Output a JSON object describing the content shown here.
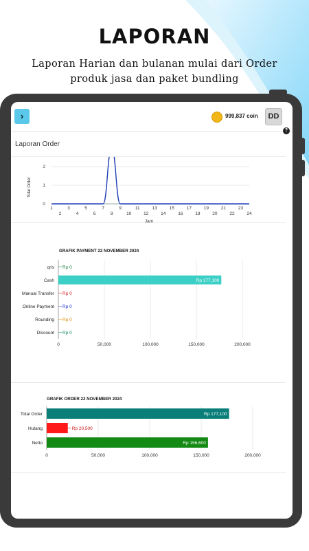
{
  "promo": {
    "headline": "LAPORAN",
    "subline_1": "Laporan Harian dan bulanan mulai dari Order",
    "subline_2": "produk jasa dan paket bundling"
  },
  "header": {
    "menu_icon": "chevron-right-icon",
    "coin_text": "999,837 coin",
    "avatar_initials": "DD",
    "help_icon": "question-circle-icon"
  },
  "page": {
    "title": "Laporan Order"
  },
  "colors": {
    "line": "#1f3fb5",
    "cash": "#3ccfc6",
    "total": "#0a7f7a",
    "hutang": "#ff1a1a",
    "netto": "#138a13",
    "accent": "#5ac8e8"
  },
  "chart_data": [
    {
      "type": "line",
      "ylabel": "Total Order",
      "xlabel": "Jam",
      "x": [
        1,
        2,
        3,
        4,
        5,
        6,
        7,
        8,
        9,
        10,
        11,
        12,
        13,
        14,
        15,
        16,
        17,
        18,
        19,
        20,
        21,
        22,
        23,
        24
      ],
      "y": [
        0,
        0,
        0,
        0,
        0,
        0,
        0,
        3,
        0,
        0,
        0,
        0,
        0,
        0,
        0,
        0,
        0,
        0,
        0,
        0,
        0,
        0,
        0,
        0
      ],
      "ylim": [
        0,
        2
      ],
      "y_ticks": [
        "0",
        "1",
        "2"
      ],
      "x_ticks_top": [
        "1",
        "3",
        "5",
        "7",
        "9",
        "11",
        "13",
        "15",
        "17",
        "19",
        "21",
        "23"
      ],
      "x_ticks_bottom": [
        "2",
        "4",
        "6",
        "8",
        "10",
        "12",
        "14",
        "16",
        "18",
        "20",
        "22",
        "24"
      ]
    },
    {
      "type": "bar",
      "orientation": "horizontal",
      "title": "GRAFIK PAYMENT 22 NOVEMBER 2024",
      "categories": [
        "qris",
        "Cash",
        "Manual Transfer",
        "Online Payment",
        "Rounding",
        "Discount"
      ],
      "values": [
        0,
        177100,
        0,
        0,
        0,
        0
      ],
      "value_labels": [
        "Rp 0",
        "Rp 177,100",
        "Rp 0",
        "Rp 0",
        "Rp 0",
        "Rp 0"
      ],
      "label_colors": [
        "#1a7f3a",
        "#ffffff",
        "#d81b1b",
        "#1c2fd1",
        "#e08a00",
        "#138a6a"
      ],
      "x_ticks": [
        "0",
        "50,000",
        "100,000",
        "150,000",
        "200,000"
      ],
      "xlim": [
        0,
        200000
      ]
    },
    {
      "type": "bar",
      "orientation": "horizontal",
      "title": "GRAFIK ORDER 22 NOVEMBER 2024",
      "categories": [
        "Total Order",
        "Hutang",
        "Netto"
      ],
      "values": [
        177100,
        20500,
        156600
      ],
      "value_labels": [
        "Rp 177,100",
        "Rp 20,500",
        "Rp 156,600"
      ],
      "x_ticks": [
        "0",
        "50,000",
        "100,000",
        "150,000",
        "200,000"
      ],
      "xlim": [
        0,
        200000
      ]
    }
  ]
}
